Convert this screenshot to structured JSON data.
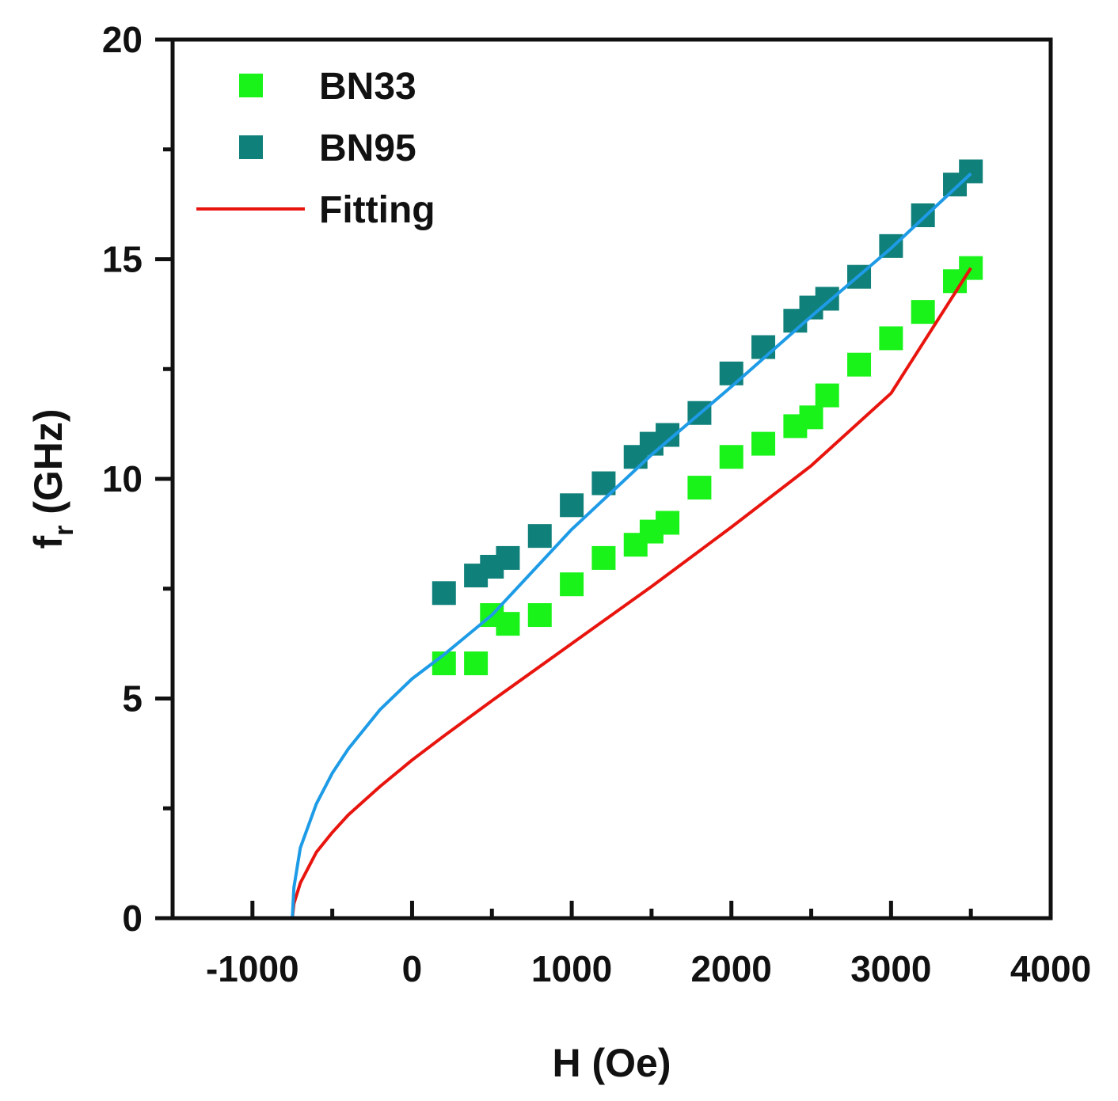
{
  "chart_data": {
    "type": "scatter",
    "title": "",
    "xlabel": "H (Oe)",
    "ylabel": {
      "main": "f",
      "subscript": "r",
      "unit": " (GHz)"
    },
    "xlim": [
      -1500,
      4000
    ],
    "ylim": [
      0,
      20
    ],
    "x_ticks": [
      -1000,
      0,
      1000,
      2000,
      3000,
      4000
    ],
    "y_ticks": [
      0,
      5,
      10,
      15,
      20
    ],
    "x_tick_labels": [
      "-1000",
      "0",
      "1000",
      "2000",
      "3000",
      "4000"
    ],
    "y_tick_labels": [
      "0",
      "5",
      "10",
      "15",
      "20"
    ],
    "x_minor_step": 500,
    "y_minor_step": 2.5,
    "grid": false,
    "legend_position": "top-left",
    "series": [
      {
        "name": "BN33",
        "kind": "scatter",
        "marker": "square",
        "color": "#19F319",
        "x": [
          200,
          400,
          500,
          600,
          800,
          1000,
          1200,
          1400,
          1500,
          1600,
          1800,
          2000,
          2200,
          2400,
          2500,
          2600,
          2800,
          3000,
          3200,
          3400,
          3500
        ],
        "y": [
          5.8,
          5.8,
          6.9,
          6.7,
          6.9,
          7.6,
          8.2,
          8.5,
          8.8,
          9.0,
          9.8,
          10.5,
          10.8,
          11.2,
          11.4,
          11.9,
          12.6,
          13.2,
          13.8,
          14.5,
          14.8
        ]
      },
      {
        "name": "BN95",
        "kind": "scatter",
        "marker": "square",
        "color": "#10807A",
        "x": [
          200,
          400,
          500,
          600,
          800,
          1000,
          1200,
          1400,
          1500,
          1600,
          1800,
          2000,
          2200,
          2400,
          2500,
          2600,
          2800,
          3000,
          3200,
          3400,
          3500
        ],
        "y": [
          7.4,
          7.8,
          8.0,
          8.2,
          8.7,
          9.4,
          9.9,
          10.5,
          10.8,
          11.0,
          11.5,
          12.4,
          13.0,
          13.6,
          13.9,
          14.1,
          14.6,
          15.3,
          16.0,
          16.7,
          17.0
        ]
      },
      {
        "name": "Fitting",
        "kind": "line",
        "color": "#E8150F",
        "x": [
          -750,
          -740,
          -700,
          -600,
          -500,
          -400,
          -200,
          0,
          200,
          500,
          1000,
          1500,
          2000,
          2500,
          3000,
          3500
        ],
        "y": [
          0.0,
          0.33,
          0.8,
          1.5,
          1.95,
          2.35,
          3.0,
          3.6,
          4.15,
          4.95,
          6.25,
          7.55,
          8.9,
          10.3,
          11.95,
          14.8
        ]
      },
      {
        "name": "Fitting (BN95)",
        "kind": "line",
        "color": "#1E9BE6",
        "in_legend": false,
        "x": [
          -750,
          -740,
          -700,
          -600,
          -500,
          -400,
          -200,
          0,
          200,
          500,
          1000,
          1500,
          2000,
          2500,
          3000,
          3500
        ],
        "y": [
          0.0,
          0.7,
          1.6,
          2.6,
          3.3,
          3.85,
          4.75,
          5.45,
          6.0,
          6.9,
          8.85,
          10.55,
          12.1,
          13.7,
          15.25,
          16.95
        ]
      }
    ]
  }
}
